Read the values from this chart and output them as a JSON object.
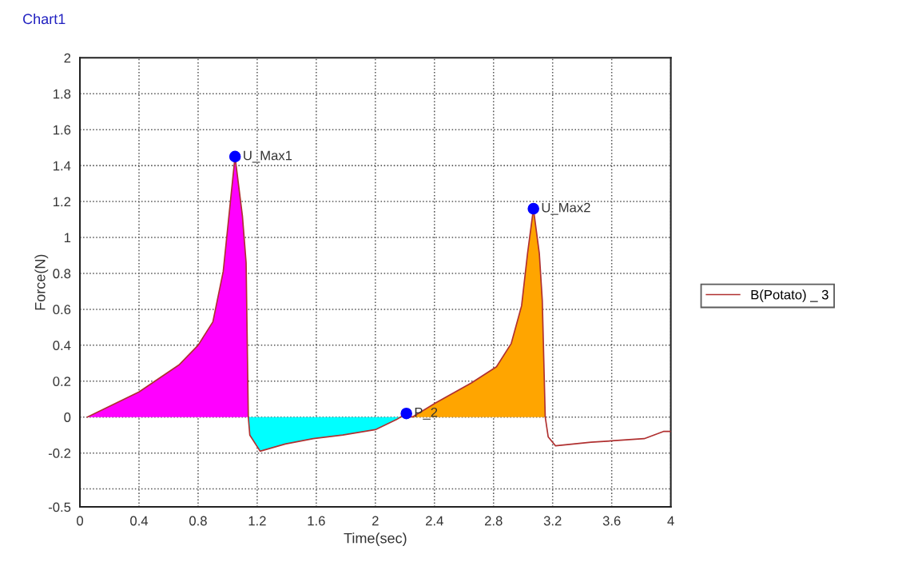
{
  "chart_data": {
    "type": "line",
    "title": "Chart1",
    "xlabel": "Time(sec)",
    "ylabel": "Force(N)",
    "xlim": [
      0,
      4
    ],
    "xticks": [
      0,
      0.4,
      0.8,
      1.2,
      1.6,
      2,
      2.4,
      2.8,
      3.2,
      3.6,
      4
    ],
    "ylim": [
      -0.5,
      2
    ],
    "yticks": [
      -0.5,
      {
        "value": -0.4,
        "label": null
      },
      -0.2,
      0,
      0.2,
      0.4,
      0.6,
      0.8,
      1,
      1.2,
      1.4,
      1.6,
      1.8,
      2
    ],
    "grid": true,
    "legend": "right",
    "series": [
      {
        "type": "area",
        "color": "#ff00ff",
        "x": [
          0.05,
          0.4,
          0.49,
          0.67,
          0.8,
          0.9,
          0.97,
          1.0,
          1.05,
          1.1,
          1.125,
          1.14
        ],
        "values": [
          0,
          0.14,
          0.19,
          0.29,
          0.4,
          0.53,
          0.81,
          1.05,
          1.45,
          1.12,
          0.86,
          0
        ]
      },
      {
        "type": "area",
        "color": "#00ffff",
        "x": [
          1.14,
          1.15,
          1.22,
          1.39,
          1.58,
          1.78,
          2.0,
          2.14,
          2.17
        ],
        "values": [
          0,
          -0.1,
          -0.19,
          -0.15,
          -0.12,
          -0.1,
          -0.07,
          -0.015,
          0
        ]
      },
      {
        "type": "area",
        "color": "#ffa500",
        "x": [
          2.25,
          2.41,
          2.65,
          2.82,
          2.92,
          2.99,
          3.03,
          3.07,
          3.11,
          3.13,
          3.15
        ],
        "values": [
          0,
          0.08,
          0.19,
          0.28,
          0.41,
          0.62,
          0.91,
          1.16,
          0.91,
          0.65,
          0
        ]
      },
      {
        "name": "B(Potato) _ 3",
        "color": "#b03030",
        "x": [
          0.05,
          0.4,
          0.49,
          0.67,
          0.8,
          0.9,
          0.97,
          1.0,
          1.05,
          1.1,
          1.125,
          1.14,
          1.15,
          1.22,
          1.39,
          1.58,
          1.78,
          2.0,
          2.14,
          2.17,
          2.21,
          2.25,
          2.41,
          2.65,
          2.82,
          2.92,
          2.99,
          3.03,
          3.07,
          3.11,
          3.13,
          3.15,
          3.17,
          3.22,
          3.46,
          3.64,
          3.82,
          3.95,
          4.0
        ],
        "values": [
          0,
          0.14,
          0.19,
          0.29,
          0.4,
          0.53,
          0.81,
          1.05,
          1.45,
          1.12,
          0.86,
          0,
          -0.1,
          -0.19,
          -0.15,
          -0.12,
          -0.1,
          -0.07,
          -0.015,
          0,
          0.02,
          0,
          0.08,
          0.19,
          0.28,
          0.41,
          0.62,
          0.91,
          1.16,
          0.91,
          0.65,
          0,
          -0.11,
          -0.16,
          -0.14,
          -0.13,
          -0.12,
          -0.08,
          -0.08
        ]
      },
      {
        "type": "scatter",
        "color": "#0000ff",
        "marker": "circle",
        "x": [
          1.05,
          2.21,
          3.07
        ],
        "values": [
          1.45,
          0.02,
          1.16
        ]
      }
    ],
    "annotations": [
      {
        "text": "U_Max1",
        "x": 1.05,
        "y": 1.45
      },
      {
        "text": "P_2",
        "x": 2.21,
        "y": 0.02
      },
      {
        "text": "U_Max2",
        "x": 3.07,
        "y": 1.16
      }
    ]
  }
}
